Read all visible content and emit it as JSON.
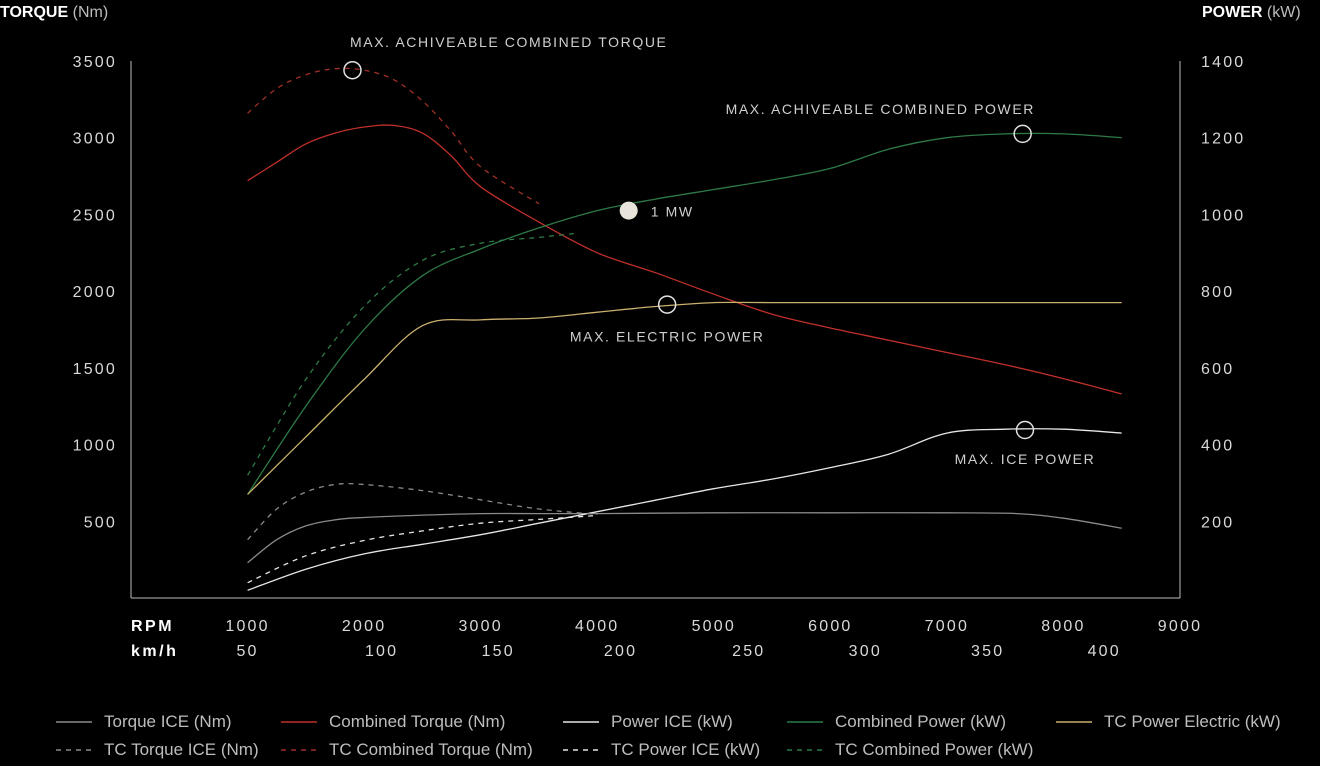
{
  "axis_titles": {
    "left_bold": "TORQUE",
    "left_unit": "(Nm)",
    "right_bold": "POWER",
    "right_unit": "(kW)"
  },
  "x_headers": {
    "rpm": "RPM",
    "kmh": "km/h"
  },
  "chart_data": {
    "type": "line",
    "title": "",
    "x_axis": {
      "label": "RPM",
      "range": [
        0,
        9000
      ],
      "ticks": [
        1000,
        2000,
        3000,
        4000,
        5000,
        6000,
        7000,
        8000,
        9000
      ],
      "secondary_label": "km/h",
      "secondary_ticks": [
        {
          "rpm": 1000,
          "label": "50"
        },
        {
          "rpm": 2150,
          "label": "100"
        },
        {
          "rpm": 3150,
          "label": "150"
        },
        {
          "rpm": 4200,
          "label": "200"
        },
        {
          "rpm": 5300,
          "label": "250"
        },
        {
          "rpm": 6300,
          "label": "300"
        },
        {
          "rpm": 7350,
          "label": "350"
        },
        {
          "rpm": 8350,
          "label": "400"
        }
      ]
    },
    "y_left": {
      "label": "TORQUE (Nm)",
      "range": [
        0,
        3500
      ],
      "ticks": [
        500,
        1000,
        1500,
        2000,
        2500,
        3000,
        3500
      ]
    },
    "y_right": {
      "label": "POWER (kW)",
      "range": [
        0,
        1400
      ],
      "ticks": [
        200,
        400,
        600,
        800,
        1000,
        1200,
        1400
      ]
    },
    "grid": false,
    "legend_position": "bottom",
    "series": [
      {
        "name": "Torque ICE (Nm)",
        "axis": "left",
        "color": "#8a8a8a",
        "dashed": false,
        "x": [
          1000,
          1250,
          1500,
          1750,
          2000,
          2500,
          3000,
          3500,
          4000,
          5000,
          6000,
          7000,
          7600,
          8000,
          8500
        ],
        "y": [
          230,
          380,
          470,
          510,
          525,
          540,
          550,
          550,
          550,
          555,
          555,
          555,
          550,
          520,
          455
        ]
      },
      {
        "name": "Combined Torque (Nm)",
        "axis": "left",
        "color": "#c0302b",
        "dashed": false,
        "x": [
          1000,
          1250,
          1500,
          1750,
          2000,
          2250,
          2500,
          2750,
          3000,
          3500,
          4000,
          4500,
          5000,
          5500,
          6000,
          6500,
          7000,
          7500,
          8000,
          8500
        ],
        "y": [
          2720,
          2840,
          2960,
          3030,
          3070,
          3080,
          3030,
          2880,
          2680,
          2450,
          2250,
          2120,
          1980,
          1850,
          1760,
          1680,
          1600,
          1520,
          1430,
          1330
        ]
      },
      {
        "name": "Power ICE (kW)",
        "axis": "right",
        "color": "#e6e6e6",
        "dashed": false,
        "x": [
          1000,
          1500,
          2000,
          2500,
          3000,
          3500,
          4000,
          4500,
          5000,
          5500,
          6000,
          6500,
          7000,
          7500,
          8000,
          8500
        ],
        "y": [
          20,
          75,
          115,
          140,
          165,
          195,
          225,
          255,
          285,
          310,
          340,
          375,
          430,
          440,
          440,
          430
        ]
      },
      {
        "name": "Combined Power (kW)",
        "axis": "right",
        "color": "#2d7a47",
        "dashed": false,
        "x": [
          1000,
          1500,
          2000,
          2500,
          3000,
          3500,
          4000,
          4500,
          5000,
          5500,
          6000,
          6500,
          7000,
          7500,
          8000,
          8500
        ],
        "y": [
          270,
          500,
          700,
          840,
          910,
          965,
          1010,
          1040,
          1065,
          1090,
          1120,
          1170,
          1200,
          1210,
          1210,
          1200
        ]
      },
      {
        "name": "TC Power Electric (kW)",
        "axis": "right",
        "color": "#c9b06e",
        "dashed": false,
        "x": [
          1000,
          1500,
          2000,
          2500,
          3000,
          3500,
          4000,
          4500,
          5000,
          5500,
          6000,
          6500,
          7000,
          7500,
          8000,
          8500
        ],
        "y": [
          270,
          420,
          570,
          710,
          725,
          730,
          745,
          760,
          770,
          770,
          770,
          770,
          770,
          770,
          770,
          770
        ]
      },
      {
        "name": "TC Torque ICE (Nm)",
        "axis": "left",
        "color": "#8a8a8a",
        "dashed": true,
        "x": [
          1000,
          1250,
          1500,
          1750,
          2000,
          2500,
          3000,
          3500,
          4000
        ],
        "y": [
          380,
          580,
          690,
          740,
          740,
          700,
          640,
          580,
          545
        ]
      },
      {
        "name": "TC Combined Torque (Nm)",
        "axis": "left",
        "color": "#a03028",
        "dashed": true,
        "x": [
          1000,
          1250,
          1500,
          1750,
          2000,
          2250,
          2500,
          2750,
          3000,
          3500
        ],
        "y": [
          3160,
          3320,
          3410,
          3450,
          3440,
          3380,
          3240,
          3040,
          2810,
          2570
        ]
      },
      {
        "name": "TC Power ICE (kW)",
        "axis": "right",
        "color": "#e6e6e6",
        "dashed": true,
        "x": [
          1000,
          1500,
          2000,
          2500,
          3000,
          3500,
          4000
        ],
        "y": [
          40,
          110,
          150,
          175,
          195,
          205,
          215
        ]
      },
      {
        "name": "TC Combined Power (kW)",
        "axis": "right",
        "color": "#2d7a47",
        "dashed": true,
        "x": [
          1000,
          1500,
          2000,
          2500,
          3000,
          3500,
          3800
        ],
        "y": [
          320,
          570,
          760,
          880,
          925,
          940,
          950
        ]
      }
    ],
    "annotations": [
      {
        "text": "MAX. ACHIVEABLE COMBINED TORQUE",
        "marker_x": 1900,
        "marker_y": 3440,
        "axis": "left",
        "filled": false
      },
      {
        "text": "MAX. ACHIVEABLE COMBINED POWER",
        "marker_x": 7650,
        "marker_y": 1210,
        "axis": "right",
        "filled": false
      },
      {
        "text": "1 MW",
        "marker_x": 4270,
        "marker_y": 1010,
        "axis": "right",
        "filled": true
      },
      {
        "text": "MAX. ELECTRIC POWER",
        "marker_x": 4600,
        "marker_y": 765,
        "axis": "right",
        "filled": false
      },
      {
        "text": "MAX. ICE POWER",
        "marker_x": 7670,
        "marker_y": 438,
        "axis": "right",
        "filled": false
      }
    ]
  }
}
